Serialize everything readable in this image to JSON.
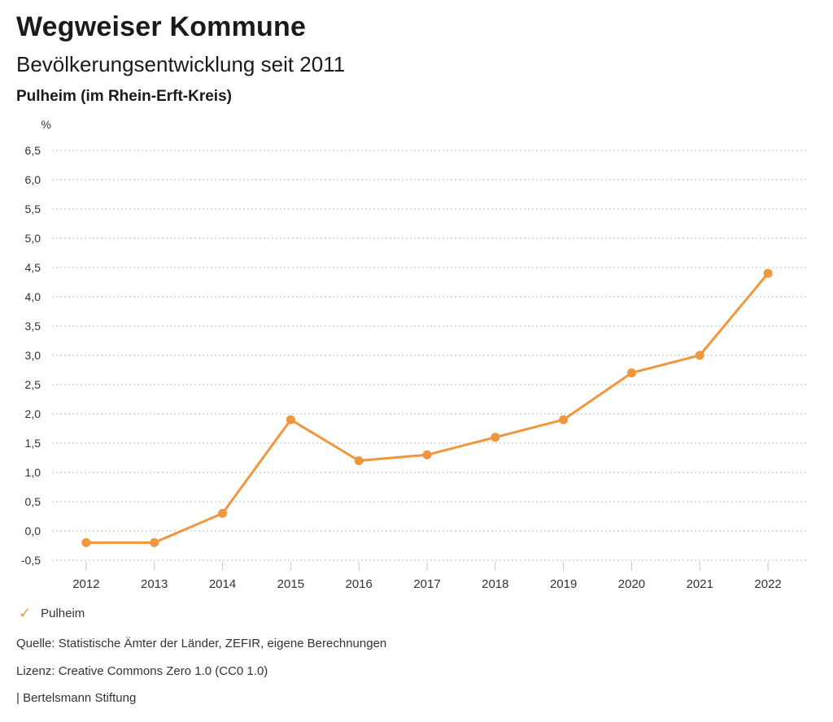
{
  "header": {
    "title": "Wegweiser Kommune",
    "subtitle": "Bevölkerungsentwicklung seit 2011",
    "region": "Pulheim (im Rhein-Erft-Kreis)"
  },
  "chart_data": {
    "type": "line",
    "title": "Bevölkerungsentwicklung seit 2011",
    "region": "Pulheim (im Rhein-Erft-Kreis)",
    "unit_label": "%",
    "categories": [
      "2012",
      "2013",
      "2014",
      "2015",
      "2016",
      "2017",
      "2018",
      "2019",
      "2020",
      "2021",
      "2022"
    ],
    "series": [
      {
        "name": "Pulheim",
        "color": "#F0963C",
        "values": [
          -0.2,
          -0.2,
          0.3,
          1.9,
          1.2,
          1.3,
          1.6,
          1.9,
          2.7,
          3.0,
          4.4
        ]
      }
    ],
    "ylim": [
      -0.5,
      6.5
    ],
    "ytick_step": 0.5,
    "decimal_separator": ",",
    "grid": "dotted-horizontal",
    "legend_position": "bottom-left"
  },
  "legend": {
    "items": [
      {
        "icon": "check",
        "label": "Pulheim",
        "color": "#F0963C"
      }
    ]
  },
  "footer": {
    "source": "Quelle: Statistische Ämter der Länder, ZEFIR, eigene Berechnungen",
    "license": "Lizenz: Creative Commons Zero 1.0 (CC0 1.0)",
    "attribution": "| Bertelsmann Stiftung"
  },
  "colors": {
    "accent": "#F0963C",
    "gridline": "#BDBDBD",
    "tick": "#C8C8C8",
    "axis_text": "#333333",
    "text": "#1A1A1A"
  }
}
